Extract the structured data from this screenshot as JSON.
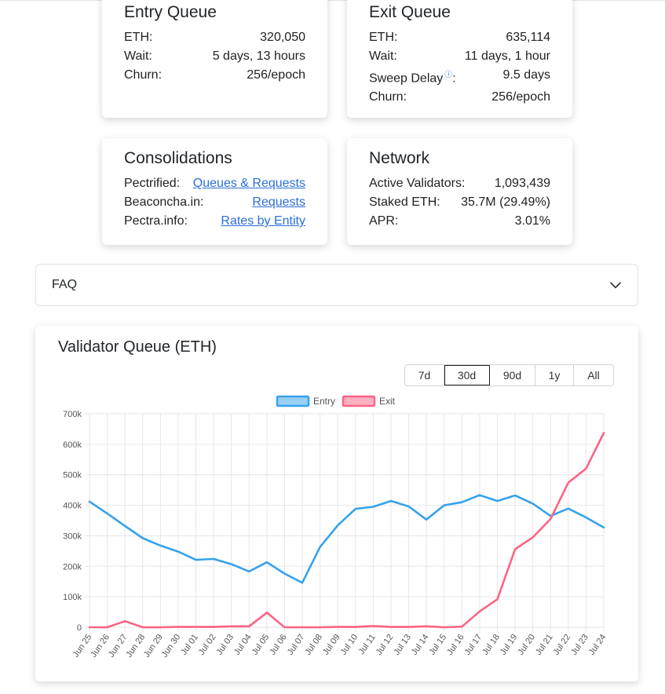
{
  "entry_queue": {
    "title": "Entry Queue",
    "rows": [
      {
        "label": "ETH:",
        "value": "320,050"
      },
      {
        "label": "Wait:",
        "value": "5 days, 13 hours"
      },
      {
        "label": "Churn:",
        "value": "256/epoch"
      }
    ]
  },
  "exit_queue": {
    "title": "Exit Queue",
    "rows": [
      {
        "label": "ETH:",
        "value": "635,114"
      },
      {
        "label": "Wait:",
        "value": "11 days, 1 hour"
      },
      {
        "label": "Sweep Delay",
        "value": "9.5 days"
      },
      {
        "label": "Churn:",
        "value": "256/epoch"
      }
    ],
    "sweep_suffix": ":"
  },
  "consolidations": {
    "title": "Consolidations",
    "rows": [
      {
        "label": "Pectrified:",
        "link": "Queues & Requests"
      },
      {
        "label": "Beaconcha.in:",
        "link": "Requests"
      },
      {
        "label": "Pectra.info:",
        "link": "Rates by Entity"
      }
    ]
  },
  "network": {
    "title": "Network",
    "rows": [
      {
        "label": "Active Validators:",
        "value": "1,093,439"
      },
      {
        "label": "Staked ETH:",
        "value": "35.7M (29.49%)"
      },
      {
        "label": "APR:",
        "value": "3.01%"
      }
    ]
  },
  "faq": {
    "label": "FAQ"
  },
  "icons": {
    "info": "info-icon",
    "faq_toggle": "chevron-down-icon"
  },
  "ranges": {
    "options": [
      "7d",
      "30d",
      "90d",
      "1y",
      "All"
    ],
    "selected": "30d"
  },
  "chart_data": {
    "type": "line",
    "title": "Validator Queue (ETH)",
    "x": [
      "Jun 25",
      "Jun 26",
      "Jun 27",
      "Jun 28",
      "Jun 29",
      "Jun 30",
      "Jul 01",
      "Jul 02",
      "Jul 03",
      "Jul 04",
      "Jul 05",
      "Jul 06",
      "Jul 07",
      "Jul 08",
      "Jul 09",
      "Jul 10",
      "Jul 11",
      "Jul 12",
      "Jul 13",
      "Jul 14",
      "Jul 15",
      "Jul 16",
      "Jul 17",
      "Jul 18",
      "Jul 19",
      "Jul 20",
      "Jul 21",
      "Jul 22",
      "Jul 23",
      "Jul 24"
    ],
    "series": [
      {
        "name": "Entry",
        "color": "#36a2eb",
        "values": [
          412000,
          373000,
          332000,
          292000,
          268000,
          248000,
          221000,
          224000,
          207000,
          183000,
          213000,
          176000,
          146000,
          263000,
          334000,
          388000,
          395000,
          414000,
          396000,
          353000,
          400000,
          410000,
          433000,
          414000,
          432000,
          405000,
          365000,
          389000,
          360000,
          327000
        ]
      },
      {
        "name": "Exit",
        "color": "#ff6384",
        "values": [
          0,
          0,
          20000,
          0,
          0,
          1000,
          1000,
          1000,
          3000,
          3000,
          48000,
          0,
          0,
          0,
          1000,
          1000,
          4000,
          1000,
          1000,
          3000,
          0,
          2000,
          52000,
          92000,
          256000,
          295000,
          355000,
          474000,
          520000,
          637000
        ]
      }
    ],
    "ylim": [
      0,
      700000
    ],
    "yticks": [
      0,
      100000,
      200000,
      300000,
      400000,
      500000,
      600000,
      700000
    ],
    "ytick_labels": [
      "0",
      "100k",
      "200k",
      "300k",
      "400k",
      "500k",
      "600k",
      "700k"
    ],
    "grid": true,
    "legend": "top"
  }
}
